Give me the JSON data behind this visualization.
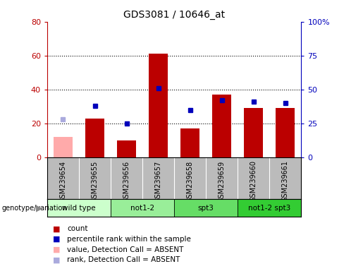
{
  "title": "GDS3081 / 10646_at",
  "samples": [
    "GSM239654",
    "GSM239655",
    "GSM239656",
    "GSM239657",
    "GSM239658",
    "GSM239659",
    "GSM239660",
    "GSM239661"
  ],
  "count_values": [
    null,
    23,
    10,
    61,
    17,
    37,
    29,
    29
  ],
  "count_absent": [
    12,
    null,
    null,
    null,
    null,
    null,
    null,
    null
  ],
  "percentile_values": [
    null,
    38,
    25,
    51,
    35,
    42,
    41,
    40
  ],
  "percentile_absent": [
    28,
    null,
    null,
    null,
    null,
    null,
    null,
    null
  ],
  "group_colors": [
    "#ccffcc",
    "#99ee99",
    "#66dd66",
    "#33cc33"
  ],
  "group_names": [
    "wild type",
    "not1-2",
    "spt3",
    "not1-2 spt3"
  ],
  "group_ranges": [
    [
      0,
      2
    ],
    [
      2,
      4
    ],
    [
      4,
      6
    ],
    [
      6,
      8
    ]
  ],
  "ylim_left": [
    0,
    80
  ],
  "ylim_right": [
    0,
    100
  ],
  "yticks_left": [
    0,
    20,
    40,
    60,
    80
  ],
  "yticks_right": [
    0,
    25,
    50,
    75,
    100
  ],
  "ytick_labels_right": [
    "0",
    "25",
    "50",
    "75",
    "100%"
  ],
  "bar_color": "#bb0000",
  "absent_bar_color": "#ffaaaa",
  "dot_color": "#0000bb",
  "absent_dot_color": "#aaaadd",
  "background_color": "#ffffff",
  "xlabel_area_color": "#bbbbbb",
  "group_label": "genotype/variation",
  "legend_items": [
    {
      "color": "#bb0000",
      "label": "count"
    },
    {
      "color": "#0000bb",
      "label": "percentile rank within the sample"
    },
    {
      "color": "#ffaaaa",
      "label": "value, Detection Call = ABSENT"
    },
    {
      "color": "#aaaadd",
      "label": "rank, Detection Call = ABSENT"
    }
  ]
}
